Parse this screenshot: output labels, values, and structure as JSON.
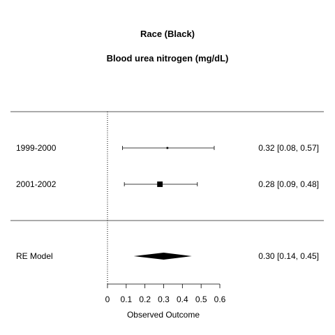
{
  "chart_data": {
    "type": "forest",
    "title": "Race (Black)",
    "subtitle": "Blood urea nitrogen (mg/dL)",
    "xlabel": "Observed Outcome",
    "xlim": [
      0,
      0.6
    ],
    "xticks": [
      0,
      0.1,
      0.2,
      0.3,
      0.4,
      0.5,
      0.6
    ],
    "xtick_labels": [
      "0",
      "0.1",
      "0.2",
      "0.3",
      "0.4",
      "0.5",
      "0.6"
    ],
    "reference_line": 0,
    "studies": [
      {
        "label": "1999-2000",
        "estimate": 0.32,
        "ci_lower": 0.08,
        "ci_upper": 0.57,
        "weight": 0.1,
        "text": "0.32 [0.08, 0.57]"
      },
      {
        "label": "2001-2002",
        "estimate": 0.28,
        "ci_lower": 0.09,
        "ci_upper": 0.48,
        "weight": 0.9,
        "text": "0.28 [0.09, 0.48]"
      }
    ],
    "summary": {
      "label": "RE Model",
      "estimate": 0.3,
      "ci_lower": 0.14,
      "ci_upper": 0.45,
      "text": "0.30 [0.14, 0.45]"
    },
    "colors": {
      "ink": "#000000",
      "rule": "#555555",
      "background": "#ffffff"
    }
  }
}
